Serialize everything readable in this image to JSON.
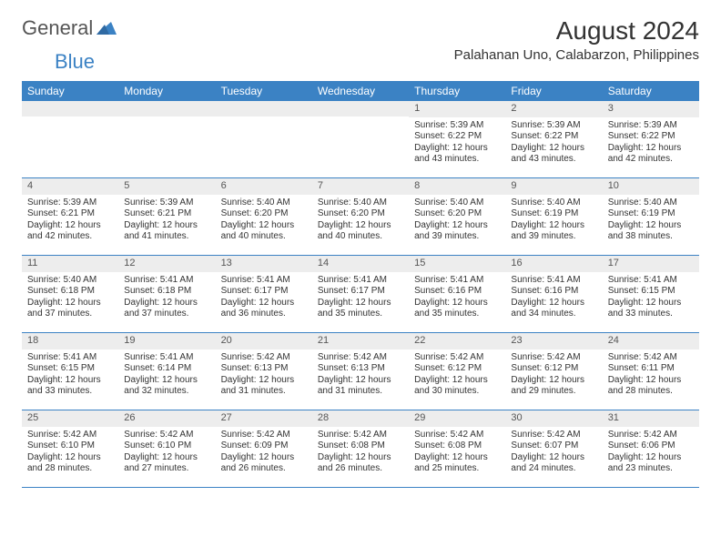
{
  "colors": {
    "header_bg": "#3b82c4",
    "header_text": "#ffffff",
    "daynum_bg": "#ededed",
    "daynum_text": "#555555",
    "body_text": "#333333",
    "border": "#3b82c4",
    "page_bg": "#ffffff"
  },
  "logo": {
    "general": "General",
    "blue": "Blue"
  },
  "title": "August 2024",
  "location": "Palahanan Uno, Calabarzon, Philippines",
  "weekdays": [
    "Sunday",
    "Monday",
    "Tuesday",
    "Wednesday",
    "Thursday",
    "Friday",
    "Saturday"
  ],
  "labels": {
    "sunrise": "Sunrise:",
    "sunset": "Sunset:",
    "daylight": "Daylight:"
  },
  "weeks": [
    [
      {
        "empty": true
      },
      {
        "empty": true
      },
      {
        "empty": true
      },
      {
        "empty": true
      },
      {
        "n": "1",
        "sunrise": "5:39 AM",
        "sunset": "6:22 PM",
        "daylight": "12 hours and 43 minutes."
      },
      {
        "n": "2",
        "sunrise": "5:39 AM",
        "sunset": "6:22 PM",
        "daylight": "12 hours and 43 minutes."
      },
      {
        "n": "3",
        "sunrise": "5:39 AM",
        "sunset": "6:22 PM",
        "daylight": "12 hours and 42 minutes."
      }
    ],
    [
      {
        "n": "4",
        "sunrise": "5:39 AM",
        "sunset": "6:21 PM",
        "daylight": "12 hours and 42 minutes."
      },
      {
        "n": "5",
        "sunrise": "5:39 AM",
        "sunset": "6:21 PM",
        "daylight": "12 hours and 41 minutes."
      },
      {
        "n": "6",
        "sunrise": "5:40 AM",
        "sunset": "6:20 PM",
        "daylight": "12 hours and 40 minutes."
      },
      {
        "n": "7",
        "sunrise": "5:40 AM",
        "sunset": "6:20 PM",
        "daylight": "12 hours and 40 minutes."
      },
      {
        "n": "8",
        "sunrise": "5:40 AM",
        "sunset": "6:20 PM",
        "daylight": "12 hours and 39 minutes."
      },
      {
        "n": "9",
        "sunrise": "5:40 AM",
        "sunset": "6:19 PM",
        "daylight": "12 hours and 39 minutes."
      },
      {
        "n": "10",
        "sunrise": "5:40 AM",
        "sunset": "6:19 PM",
        "daylight": "12 hours and 38 minutes."
      }
    ],
    [
      {
        "n": "11",
        "sunrise": "5:40 AM",
        "sunset": "6:18 PM",
        "daylight": "12 hours and 37 minutes."
      },
      {
        "n": "12",
        "sunrise": "5:41 AM",
        "sunset": "6:18 PM",
        "daylight": "12 hours and 37 minutes."
      },
      {
        "n": "13",
        "sunrise": "5:41 AM",
        "sunset": "6:17 PM",
        "daylight": "12 hours and 36 minutes."
      },
      {
        "n": "14",
        "sunrise": "5:41 AM",
        "sunset": "6:17 PM",
        "daylight": "12 hours and 35 minutes."
      },
      {
        "n": "15",
        "sunrise": "5:41 AM",
        "sunset": "6:16 PM",
        "daylight": "12 hours and 35 minutes."
      },
      {
        "n": "16",
        "sunrise": "5:41 AM",
        "sunset": "6:16 PM",
        "daylight": "12 hours and 34 minutes."
      },
      {
        "n": "17",
        "sunrise": "5:41 AM",
        "sunset": "6:15 PM",
        "daylight": "12 hours and 33 minutes."
      }
    ],
    [
      {
        "n": "18",
        "sunrise": "5:41 AM",
        "sunset": "6:15 PM",
        "daylight": "12 hours and 33 minutes."
      },
      {
        "n": "19",
        "sunrise": "5:41 AM",
        "sunset": "6:14 PM",
        "daylight": "12 hours and 32 minutes."
      },
      {
        "n": "20",
        "sunrise": "5:42 AM",
        "sunset": "6:13 PM",
        "daylight": "12 hours and 31 minutes."
      },
      {
        "n": "21",
        "sunrise": "5:42 AM",
        "sunset": "6:13 PM",
        "daylight": "12 hours and 31 minutes."
      },
      {
        "n": "22",
        "sunrise": "5:42 AM",
        "sunset": "6:12 PM",
        "daylight": "12 hours and 30 minutes."
      },
      {
        "n": "23",
        "sunrise": "5:42 AM",
        "sunset": "6:12 PM",
        "daylight": "12 hours and 29 minutes."
      },
      {
        "n": "24",
        "sunrise": "5:42 AM",
        "sunset": "6:11 PM",
        "daylight": "12 hours and 28 minutes."
      }
    ],
    [
      {
        "n": "25",
        "sunrise": "5:42 AM",
        "sunset": "6:10 PM",
        "daylight": "12 hours and 28 minutes."
      },
      {
        "n": "26",
        "sunrise": "5:42 AM",
        "sunset": "6:10 PM",
        "daylight": "12 hours and 27 minutes."
      },
      {
        "n": "27",
        "sunrise": "5:42 AM",
        "sunset": "6:09 PM",
        "daylight": "12 hours and 26 minutes."
      },
      {
        "n": "28",
        "sunrise": "5:42 AM",
        "sunset": "6:08 PM",
        "daylight": "12 hours and 26 minutes."
      },
      {
        "n": "29",
        "sunrise": "5:42 AM",
        "sunset": "6:08 PM",
        "daylight": "12 hours and 25 minutes."
      },
      {
        "n": "30",
        "sunrise": "5:42 AM",
        "sunset": "6:07 PM",
        "daylight": "12 hours and 24 minutes."
      },
      {
        "n": "31",
        "sunrise": "5:42 AM",
        "sunset": "6:06 PM",
        "daylight": "12 hours and 23 minutes."
      }
    ]
  ]
}
